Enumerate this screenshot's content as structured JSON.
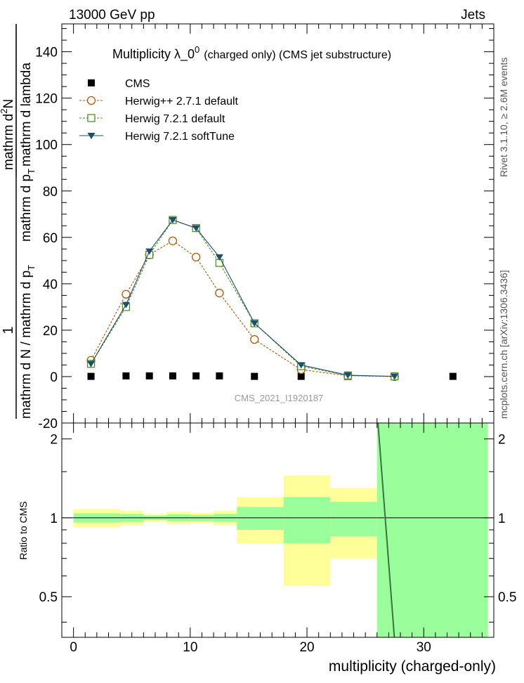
{
  "header": {
    "left": "13000 GeV pp",
    "right": "Jets"
  },
  "side_text": {
    "rivet": "Rivet 3.1.10, ≥ 2.6M events",
    "mcplots": "mcplots.cern.ch [arXiv:1306.3436]"
  },
  "watermark": "CMS_2021_I1920187",
  "chart_data": [
    {
      "type": "line",
      "title": "Multiplicity  λ_0",
      "title_superscript": "0",
      "title_suffix": "(charged only) (CMS jet substructure)",
      "ylabel": {
        "numerator": "1",
        "denominator_main": "mathrm d N / mathrm d p",
        "denominator_sub": "T",
        "fraction_numerator_main": "mathrm d",
        "fraction_numerator_sup": "2",
        "fraction_numerator_tail": "N",
        "fraction_denominator_main": "mathrm d p",
        "fraction_denominator_sub": "T",
        "fraction_denominator_tail": "mathrm d lambda"
      },
      "ylim": [
        -20,
        152
      ],
      "xlim": [
        -1,
        36
      ],
      "yticks": [
        -20,
        0,
        20,
        40,
        60,
        80,
        100,
        120,
        140
      ],
      "legend_position": "top-left",
      "series": [
        {
          "name": "CMS",
          "style": "square-marker",
          "color": "#000000",
          "x": [
            1.5,
            4.5,
            6.5,
            8.5,
            10.5,
            12.5,
            15.5,
            19.5,
            23.5,
            27.5,
            32.5
          ],
          "y": [
            0.1,
            0.3,
            0.3,
            0.3,
            0.3,
            0.3,
            0.1,
            0.1,
            0.1,
            0.1,
            0.1
          ]
        },
        {
          "name": "Herwig++ 2.7.1 default",
          "style": "open-circle-dashed",
          "color": "#b35806",
          "x": [
            1.5,
            4.5,
            6.5,
            8.5,
            10.5,
            12.5,
            15.5,
            19.5,
            23.5,
            27.5
          ],
          "y": [
            7.0,
            35.5,
            52.5,
            58.5,
            51.5,
            36.0,
            16.0,
            3.0,
            0.4,
            0.0
          ]
        },
        {
          "name": "Herwig 7.2.1 default",
          "style": "open-square-dashed",
          "color": "#4d9221",
          "x": [
            1.5,
            4.5,
            6.5,
            8.5,
            10.5,
            12.5,
            15.5,
            19.5,
            23.5,
            27.5
          ],
          "y": [
            5.5,
            30.0,
            52.5,
            67.5,
            64.0,
            49.0,
            23.0,
            4.5,
            0.5,
            0.1
          ]
        },
        {
          "name": "Herwig 7.2.1 softTune",
          "style": "filled-triangle-solid",
          "color": "#1d4f6a",
          "x": [
            1.5,
            4.5,
            6.5,
            8.5,
            10.5,
            12.5,
            15.5,
            19.5,
            23.5,
            27.5
          ],
          "y": [
            5.5,
            31.0,
            54.0,
            67.5,
            64.0,
            51.5,
            23.0,
            5.0,
            0.6,
            0.1
          ]
        }
      ]
    },
    {
      "type": "area",
      "ylabel": "Ratio to CMS",
      "xlabel": "multiplicity (charged-only)",
      "ylim": [
        0.35,
        2.3
      ],
      "xlim": [
        -1,
        36
      ],
      "yticks": [
        0.5,
        1,
        2
      ],
      "xticks": [
        0,
        10,
        20,
        30
      ],
      "band_colors": {
        "inner": "#9aff9a",
        "outer": "#ffff99"
      },
      "bands": [
        {
          "x0": 0,
          "x1": 4,
          "inner": [
            0.96,
            1.04
          ],
          "outer": [
            0.92,
            1.08
          ]
        },
        {
          "x0": 4,
          "x1": 6,
          "inner": [
            0.965,
            1.035
          ],
          "outer": [
            0.935,
            1.065
          ]
        },
        {
          "x0": 6,
          "x1": 8,
          "inner": [
            0.98,
            1.02
          ],
          "outer": [
            0.965,
            1.035
          ]
        },
        {
          "x0": 8,
          "x1": 10,
          "inner": [
            0.97,
            1.03
          ],
          "outer": [
            0.945,
            1.055
          ]
        },
        {
          "x0": 10,
          "x1": 12,
          "inner": [
            0.975,
            1.025
          ],
          "outer": [
            0.955,
            1.045
          ]
        },
        {
          "x0": 12,
          "x1": 14,
          "inner": [
            0.965,
            1.035
          ],
          "outer": [
            0.935,
            1.065
          ]
        },
        {
          "x0": 14,
          "x1": 18,
          "inner": [
            0.9,
            1.1
          ],
          "outer": [
            0.8,
            1.2
          ]
        },
        {
          "x0": 18,
          "x1": 22,
          "inner": [
            0.8,
            1.2
          ],
          "outer": [
            0.55,
            1.45
          ]
        },
        {
          "x0": 22,
          "x1": 26,
          "inner": [
            0.85,
            1.15
          ],
          "outer": [
            0.7,
            1.3
          ]
        },
        {
          "x0": 26,
          "x1": 35.5,
          "inner": [
            0.35,
            2.3
          ],
          "outer": [
            0.35,
            2.3
          ]
        }
      ],
      "series": [
        {
          "name": "Herwig 7.2.1 softTune",
          "color": "#1d4f6a",
          "x": [
            26.1,
            27.5
          ],
          "y": [
            2.3,
            0.35
          ]
        },
        {
          "name": "Herwig 7.2.1 default",
          "color": "#4d9221",
          "x": [
            26.05,
            27.45
          ],
          "y": [
            2.3,
            0.35
          ]
        }
      ]
    }
  ]
}
